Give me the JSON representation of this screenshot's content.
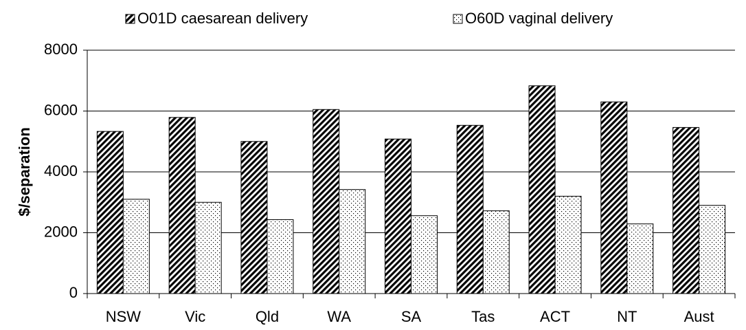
{
  "chart_data": {
    "type": "bar",
    "y_label": "$/separation",
    "categories": [
      "NSW",
      "Vic",
      "Qld",
      "WA",
      "SA",
      "Tas",
      "ACT",
      "NT",
      "Aust"
    ],
    "series": [
      {
        "name": "O01D caesarean delivery",
        "color": "#000000",
        "pattern": "hatch",
        "values": [
          5330,
          5790,
          5000,
          6050,
          5080,
          5530,
          6830,
          6300,
          5460
        ]
      },
      {
        "name": "O60D vaginal delivery",
        "color": "#000000",
        "pattern": "dots",
        "values": [
          3100,
          3000,
          2430,
          3420,
          2560,
          2720,
          3200,
          2290,
          2900
        ]
      }
    ],
    "ylim": [
      0,
      8000
    ],
    "yticks": [
      0,
      2000,
      4000,
      6000,
      8000
    ],
    "grid": true,
    "legend": "top"
  }
}
